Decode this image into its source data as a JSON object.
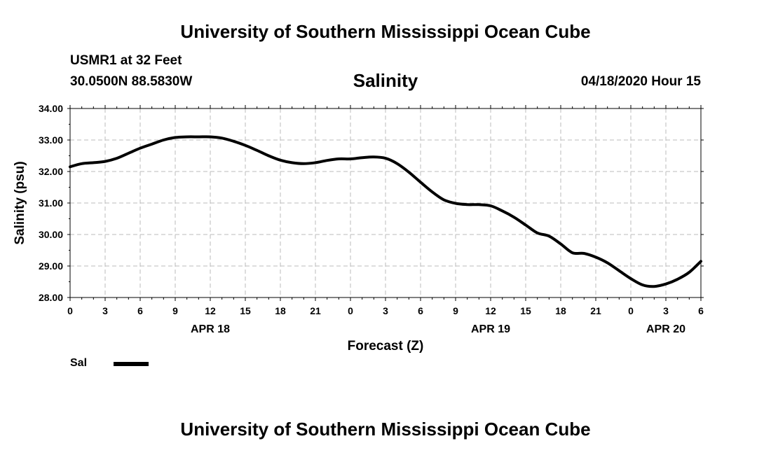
{
  "header": {
    "title": "University of Southern Mississippi Ocean Cube",
    "station": "USMR1 at 32 Feet",
    "coordinates": "30.0500N 88.5830W",
    "variable": "Salinity",
    "datetime": "04/18/2020 Hour 15"
  },
  "footer": {
    "title": "University of Southern Mississippi Ocean Cube"
  },
  "legend": {
    "label": "Sal",
    "color": "#000000"
  },
  "chart_data": {
    "type": "line",
    "title": "Salinity",
    "xlabel": "Forecast (Z)",
    "ylabel": "Salinity (psu)",
    "ylim": [
      28.0,
      34.0
    ],
    "xlim": [
      0,
      54
    ],
    "grid": true,
    "yticks": [
      "28.00",
      "29.00",
      "30.00",
      "31.00",
      "32.00",
      "33.00",
      "34.00"
    ],
    "ytick_values": [
      28,
      29,
      30,
      31,
      32,
      33,
      34
    ],
    "xtick_labels": [
      "0",
      "3",
      "6",
      "9",
      "12",
      "15",
      "18",
      "21",
      "0",
      "3",
      "6",
      "9",
      "12",
      "15",
      "18",
      "21",
      "0",
      "3",
      "6"
    ],
    "date_labels": [
      {
        "label": "APR 18",
        "hour": 12
      },
      {
        "label": "APR 19",
        "hour": 36
      },
      {
        "label": "APR 20",
        "hour": 51
      }
    ],
    "series": [
      {
        "name": "Sal",
        "color": "#000000",
        "x": [
          0,
          1,
          2,
          3,
          4,
          5,
          6,
          7,
          8,
          9,
          10,
          11,
          12,
          13,
          14,
          15,
          16,
          17,
          18,
          19,
          20,
          21,
          22,
          23,
          24,
          25,
          26,
          27,
          28,
          29,
          30,
          31,
          32,
          33,
          34,
          35,
          36,
          37,
          38,
          39,
          40,
          41,
          42,
          43,
          44,
          45,
          46,
          47,
          48,
          49,
          50,
          51,
          52,
          53,
          54
        ],
        "y": [
          32.15,
          32.25,
          32.28,
          32.32,
          32.42,
          32.58,
          32.74,
          32.87,
          33.0,
          33.08,
          33.1,
          33.1,
          33.1,
          33.06,
          32.96,
          32.83,
          32.67,
          32.5,
          32.36,
          32.28,
          32.25,
          32.28,
          32.35,
          32.4,
          32.4,
          32.44,
          32.46,
          32.42,
          32.25,
          31.98,
          31.66,
          31.35,
          31.1,
          30.99,
          30.95,
          30.95,
          30.91,
          30.75,
          30.55,
          30.3,
          30.05,
          29.95,
          29.7,
          29.42,
          29.4,
          29.28,
          29.1,
          28.85,
          28.6,
          28.4,
          28.35,
          28.43,
          28.58,
          28.8,
          29.15
        ]
      }
    ]
  }
}
